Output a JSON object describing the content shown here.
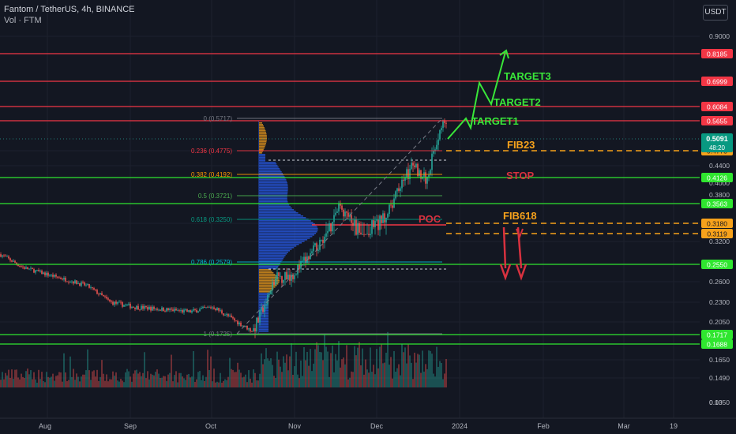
{
  "header": {
    "symbol_line": "Fantom / TetherUS, 4h, BINANCE",
    "volume_line": "Vol · FTM"
  },
  "currency_button": "USDT",
  "price_axis": {
    "ticks": [
      "0.9000",
      "0.8000",
      "0.7000",
      "0.6000",
      "0.4400",
      "0.4000",
      "0.3800",
      "0.3600",
      "0.3200",
      "0.2900",
      "0.2600",
      "0.2300",
      "0.2050",
      "0.1850",
      "0.1650",
      "0.1490",
      "0.1350",
      "0.00"
    ]
  },
  "time_axis": {
    "labels": [
      "Aug",
      "Sep",
      "Oct",
      "Nov",
      "Dec",
      "2024",
      "Feb",
      "Mar",
      "19"
    ]
  },
  "current_price": {
    "value": "0.5091",
    "countdown": "48:20"
  },
  "colors": {
    "bg": "#131722",
    "up": "#26a69a",
    "down": "#ef5350",
    "red_line": "#f23645",
    "green_line": "#2fe62f",
    "orange": "#f7a21b",
    "target_green": "#39e639",
    "arrow_red": "#d8313f"
  },
  "chart_data": {
    "type": "line",
    "title": "Fantom / TetherUS, 4h, BINANCE",
    "ylim": [
      0.13,
      0.95
    ],
    "xrange": [
      "Aug",
      "19"
    ],
    "horizontal_levels": [
      {
        "price": 0.8185,
        "label": "0.8185",
        "color": "red"
      },
      {
        "price": 0.6999,
        "label": "0.6999",
        "color": "red"
      },
      {
        "price": 0.6084,
        "label": "0.6084",
        "color": "red"
      },
      {
        "price": 0.5655,
        "label": "0.5655",
        "color": "red"
      },
      {
        "price": 0.4775,
        "label": "0.4775",
        "color": "orange"
      },
      {
        "price": 0.4126,
        "label": "0.4126",
        "color": "green"
      },
      {
        "price": 0.3563,
        "label": "0.3563",
        "color": "green"
      },
      {
        "price": 0.318,
        "label": "0.3180",
        "color": "orange"
      },
      {
        "price": 0.3119,
        "label": "0.3119",
        "color": "orange"
      },
      {
        "price": 0.255,
        "label": "0.2550",
        "color": "green"
      },
      {
        "price": 0.1717,
        "label": "0.1717",
        "color": "green"
      },
      {
        "price": 0.1688,
        "label": "0.1688",
        "color": "green"
      }
    ],
    "fib_levels": [
      {
        "label": "0 (0.5717)"
      },
      {
        "label": "0.236 (0.4775)"
      },
      {
        "label": "0.382 (0.4192)"
      },
      {
        "label": "0.5 (0.3721)"
      },
      {
        "label": "0.618 (0.3250)"
      },
      {
        "label": "0.786 (0.2579)"
      },
      {
        "label": "1 (0.1725)"
      }
    ],
    "annotations": [
      "TARGET3",
      "TARGET2",
      "TARGET1",
      "FIB23",
      "STOP",
      "POC",
      "FIB618"
    ]
  }
}
